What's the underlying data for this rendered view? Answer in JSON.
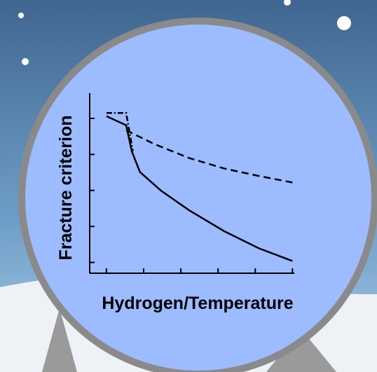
{
  "chart_data": {
    "type": "line",
    "xlabel": "Hydrogen/Temperature",
    "ylabel": "Fracture criterion",
    "xlim": [
      -0.45,
      5.05
    ],
    "ylim": [
      -0.3,
      4.7
    ],
    "xticks": [
      0,
      1,
      2,
      3,
      4,
      5
    ],
    "yticks": [
      0,
      1,
      2,
      3,
      4
    ],
    "series": [
      {
        "color": "#000000",
        "style": "solid",
        "x": [
          0,
          0.53,
          0.68,
          0.9,
          1.47,
          2.22,
          3.16,
          4.1,
          5
        ],
        "values": [
          4.06,
          3.81,
          3.09,
          2.51,
          1.99,
          1.45,
          0.87,
          0.39,
          0.04
        ]
      },
      {
        "color": "#000000",
        "style": "dashed",
        "x": [
          0.53,
          1.28,
          2.22,
          3.16,
          4.1,
          5
        ],
        "values": [
          3.67,
          3.29,
          2.9,
          2.61,
          2.4,
          2.22
        ]
      },
      {
        "color": "#000000",
        "style": "dashdot",
        "x": [
          0,
          0.53,
          0.71
        ],
        "values": [
          4.15,
          4.15,
          3.09
        ]
      }
    ]
  }
}
